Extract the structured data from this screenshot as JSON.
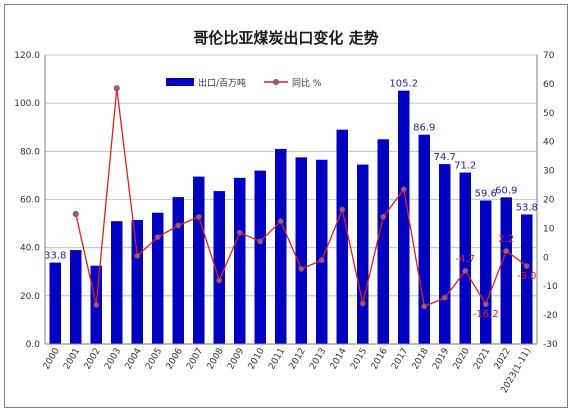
{
  "chart_data": {
    "type": "bar",
    "title": "哥伦比亚煤炭出口变化 走势",
    "categories": [
      "2000",
      "2001",
      "2002",
      "2003",
      "2004",
      "2005",
      "2006",
      "2007",
      "2008",
      "2009",
      "2010",
      "2011",
      "2012",
      "2013",
      "2014",
      "2015",
      "2016",
      "2017",
      "2018",
      "2019",
      "2020",
      "2021",
      "2022",
      "2023(1-11)"
    ],
    "series": [
      {
        "name": "出口/百万吨",
        "type": "bar",
        "axis": "left",
        "color": "#0000c0",
        "values": [
          33.8,
          39.0,
          32.5,
          51.0,
          51.5,
          54.5,
          61.0,
          69.5,
          63.5,
          69.0,
          72.0,
          81.0,
          77.5,
          76.5,
          89.0,
          74.5,
          85.0,
          105.2,
          86.9,
          74.7,
          71.2,
          59.6,
          60.9,
          53.8
        ],
        "labels": {
          "0": "33.8",
          "17": "105.2",
          "18": "86.9",
          "19": "74.7",
          "20": "71.2",
          "21": "59.6",
          "22": "60.9",
          "23": "53.8"
        }
      },
      {
        "name": "同比 %",
        "type": "line",
        "axis": "right",
        "color": "#e02020",
        "marker_color": "#6a6aa8",
        "values": [
          null,
          15.0,
          -16.5,
          58.5,
          0.5,
          7.0,
          11.0,
          14.0,
          -8.0,
          8.5,
          5.5,
          12.5,
          -4.0,
          -1.0,
          16.5,
          -16.0,
          14.0,
          23.5,
          -17.0,
          -14.0,
          -4.7,
          -16.2,
          2.2,
          -3.0
        ],
        "labels": {
          "20": "-4.7",
          "21": "-16.2",
          "22": "2.2",
          "23": "-3.0"
        }
      }
    ],
    "y_left": {
      "min": 0,
      "max": 120,
      "step": 20,
      "tick_labels": [
        "0.0",
        "20.0",
        "40.0",
        "60.0",
        "80.0",
        "100.0",
        "120.0"
      ]
    },
    "y_right": {
      "min": -30,
      "max": 70,
      "step": 10,
      "tick_labels": [
        "-30",
        "-20",
        "-10",
        "0",
        "10",
        "20",
        "30",
        "40",
        "50",
        "60",
        "70"
      ]
    },
    "grid": true,
    "legend_position": "top-center"
  }
}
